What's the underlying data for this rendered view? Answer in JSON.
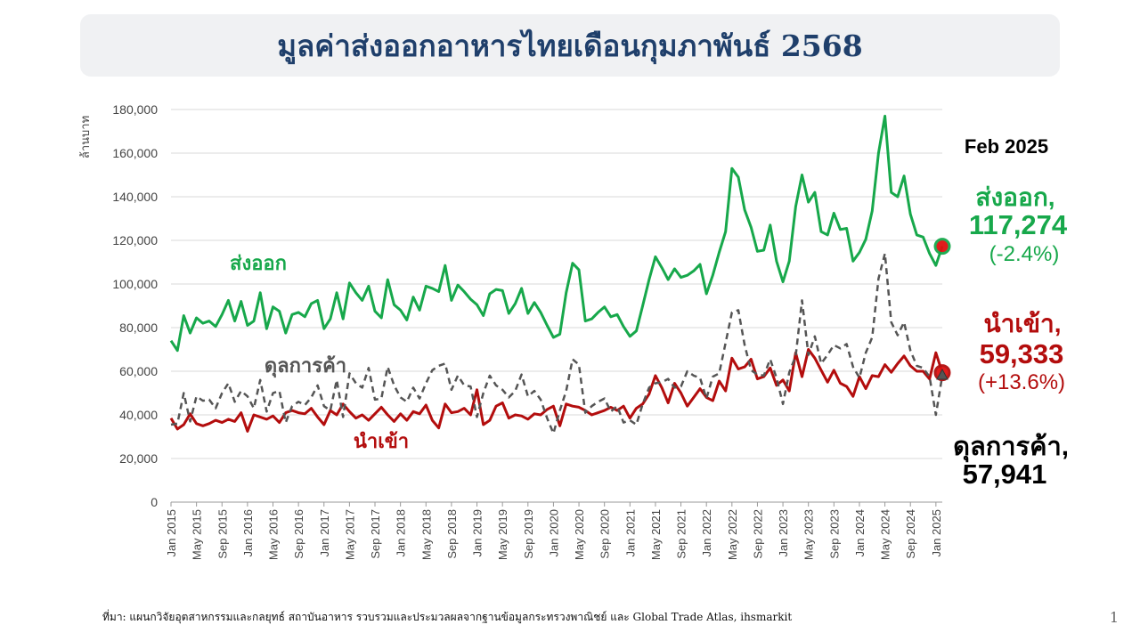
{
  "title": "มูลค่าส่งออกอาหารไทยเดือนกุมภาพันธ์ 2568",
  "source": "ที่มา: แผนกวิจัยอุตสาหกรรมและกลยุทธ์   สถาบันอาหาร รวบรวมและประมวลผลจากฐานข้อมูลกระทรวงพาณิชย์  และ Global Trade Atlas, ihsmarkit",
  "page_number": "1",
  "annotations": {
    "date": "Feb 2025",
    "export_label": "ส่งออก,",
    "export_value": "117,274",
    "export_change": "(-2.4%)",
    "import_label": "นำเข้า,",
    "import_value": "59,333",
    "import_change": "(+13.6%)",
    "balance_label": "ดุลการค้า,",
    "balance_value": "57,941"
  },
  "colors": {
    "export": "#17a84b",
    "import": "#b30d0d",
    "balance": "#555555",
    "title": "#1f3f6b",
    "marker": "#e01010"
  },
  "chart_data": {
    "type": "line",
    "ylabel": "ล้านบาท",
    "ylim": [
      0,
      180000
    ],
    "yticks": [
      0,
      20000,
      40000,
      60000,
      80000,
      100000,
      120000,
      140000,
      160000,
      180000
    ],
    "ytick_labels": [
      "0",
      "20,000",
      "40,000",
      "60,000",
      "80,000",
      "100,000",
      "120,000",
      "140,000",
      "160,000",
      "180,000"
    ],
    "x_start": "Jan 2015",
    "x_end": "Feb 2025",
    "xtick_labels": [
      "Jan 2015",
      "May 2015",
      "Sep 2015",
      "Jan 2016",
      "May 2016",
      "Sep 2016",
      "Jan 2017",
      "May 2017",
      "Sep 2017",
      "Jan 2018",
      "May 2018",
      "Sep 2018",
      "Jan 2019",
      "May 2019",
      "Sep 2019",
      "Jan 2020",
      "May 2020",
      "Sep 2020",
      "Jan 2021",
      "May 2021",
      "Sep 2021",
      "Jan 2022",
      "May 2022",
      "Sep 2022",
      "Jan 2023",
      "May 2023",
      "Sep 2023",
      "Jan 2024",
      "May 2024",
      "Sep 2024",
      "Jan 2025"
    ],
    "series": [
      {
        "name": "ส่งออก",
        "style": "solid",
        "values": [
          74000,
          69500,
          85500,
          77500,
          84500,
          82000,
          83000,
          80500,
          86000,
          92500,
          83000,
          92000,
          81000,
          83000,
          96000,
          79500,
          89500,
          87500,
          77500,
          86000,
          87000,
          85000,
          91000,
          92500,
          79500,
          84000,
          96000,
          84000,
          100500,
          96000,
          92500,
          99000,
          87500,
          84500,
          102000,
          90500,
          88000,
          83500,
          94000,
          88000,
          99000,
          98000,
          96500,
          108500,
          92500,
          99500,
          96500,
          93000,
          90500,
          85500,
          95500,
          97500,
          97000,
          86500,
          91000,
          98000,
          86500,
          91500,
          87000,
          81000,
          75500,
          77000,
          96000,
          109500,
          106500,
          83000,
          84000,
          87000,
          89500,
          85000,
          86000,
          80500,
          76000,
          78500,
          90000,
          102000,
          112500,
          107500,
          102000,
          107000,
          103000,
          104000,
          106000,
          109000,
          95500,
          104000,
          114500,
          124000,
          153000,
          149000,
          134000,
          126000,
          115000,
          115500,
          127000,
          110500,
          101000,
          110500,
          135500,
          150000,
          137500,
          142000,
          124000,
          122500,
          132500,
          125000,
          125500,
          110500,
          114500,
          120500,
          133500,
          160000,
          177000,
          142000,
          140000,
          149500,
          132000,
          122500,
          121500,
          114000,
          108500,
          117274
        ]
      },
      {
        "name": "นำเข้า",
        "style": "solid",
        "values": [
          38500,
          33500,
          35500,
          40500,
          36000,
          35000,
          36000,
          37500,
          36500,
          38000,
          37000,
          41000,
          32500,
          40000,
          39000,
          38000,
          39500,
          36500,
          41000,
          42000,
          41000,
          40500,
          43000,
          39000,
          35500,
          42000,
          40000,
          45000,
          41500,
          38500,
          40000,
          37500,
          40500,
          43500,
          40000,
          37000,
          40500,
          37500,
          41500,
          40500,
          44500,
          37500,
          34000,
          45000,
          41000,
          41500,
          43000,
          40000,
          51500,
          35500,
          37500,
          44000,
          45500,
          38500,
          40000,
          39500,
          38000,
          40500,
          40000,
          42500,
          44000,
          35000,
          45000,
          44000,
          43500,
          42000,
          40000,
          41000,
          42000,
          43500,
          42000,
          44000,
          38500,
          43000,
          45000,
          49500,
          58000,
          52500,
          45500,
          54500,
          50000,
          44000,
          48000,
          52000,
          48000,
          46500,
          55500,
          51000,
          66000,
          61000,
          62000,
          65500,
          56500,
          57500,
          61500,
          53500,
          56000,
          51000,
          68500,
          57500,
          70000,
          66000,
          60500,
          55000,
          60500,
          54500,
          53000,
          48500,
          57500,
          52000,
          58000,
          57500,
          63000,
          59500,
          63500,
          67000,
          62500,
          60000,
          60000,
          56500,
          68500,
          59333
        ]
      },
      {
        "name": "ดุลการค้า",
        "style": "dashed",
        "values": [
          35500,
          36000,
          50000,
          37000,
          48500,
          46500,
          47000,
          43000,
          50000,
          54500,
          46000,
          51000,
          48500,
          43000,
          56000,
          41500,
          50000,
          51000,
          36500,
          44000,
          46000,
          44500,
          48000,
          53500,
          44000,
          42000,
          56000,
          39000,
          59000,
          54500,
          52500,
          61500,
          47000,
          47500,
          62000,
          53500,
          48000,
          46000,
          52500,
          47500,
          54500,
          60500,
          62500,
          63500,
          51500,
          58000,
          53500,
          53000,
          39000,
          50000,
          58000,
          53500,
          51500,
          48000,
          51000,
          58500,
          48500,
          51000,
          47000,
          38500,
          31500,
          42000,
          51000,
          65500,
          63000,
          41000,
          44000,
          46000,
          47500,
          41500,
          44000,
          36500,
          37500,
          35500,
          45000,
          52500,
          54500,
          55000,
          56500,
          52500,
          53000,
          60000,
          58000,
          57000,
          47500,
          57500,
          59000,
          73000,
          87000,
          88000,
          72000,
          60500,
          58500,
          58000,
          65500,
          57000,
          45000,
          59500,
          67000,
          92500,
          67500,
          76000,
          63500,
          67500,
          72000,
          70500,
          72500,
          62000,
          57000,
          68500,
          75500,
          102500,
          114000,
          82500,
          76500,
          82500,
          69500,
          62500,
          61500,
          57500,
          40000,
          57941
        ]
      }
    ]
  }
}
